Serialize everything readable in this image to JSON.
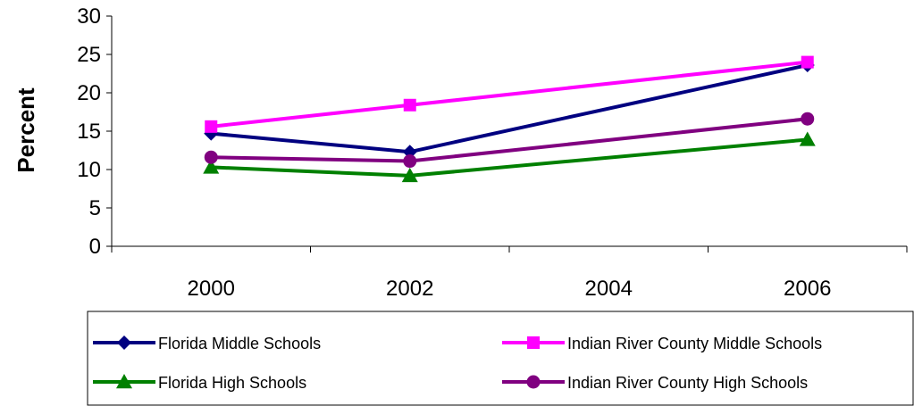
{
  "chart_data": {
    "type": "line",
    "title": "",
    "xlabel": "",
    "ylabel": "Percent",
    "x": [
      2000,
      2002,
      2006
    ],
    "xticks": [
      "2000",
      "2002",
      "2004",
      "2006"
    ],
    "xlim": [
      1999,
      2007
    ],
    "yticks": [
      "0",
      "5",
      "10",
      "15",
      "20",
      "25",
      "30"
    ],
    "ylim": [
      0,
      30
    ],
    "grid": false,
    "legend": "bottom",
    "series": [
      {
        "name": "Florida Middle Schools",
        "values": [
          14.7,
          12.3,
          23.6
        ],
        "color": "#000080",
        "marker": "diamond"
      },
      {
        "name": "Indian River County Middle Schools",
        "values": [
          15.6,
          18.4,
          24.0
        ],
        "color": "#ff00ff",
        "marker": "square"
      },
      {
        "name": "Florida High Schools",
        "values": [
          10.3,
          9.2,
          13.9
        ],
        "color": "#008000",
        "marker": "triangle"
      },
      {
        "name": "Indian River County High Schools",
        "values": [
          11.6,
          11.1,
          16.6
        ],
        "color": "#800080",
        "marker": "circle"
      }
    ]
  }
}
